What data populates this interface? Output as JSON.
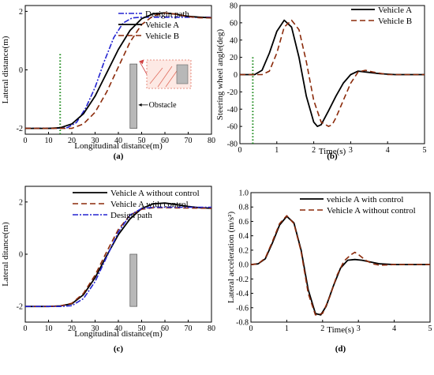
{
  "chart_data": [
    {
      "type": "line",
      "panel_label": "(a)",
      "xlabel": "Longitudinal distance(m)",
      "ylabel": "Lateral distance(m)",
      "xlim": [
        0,
        80
      ],
      "ylim": [
        -2.2,
        2.2
      ],
      "xticks": [
        0,
        10,
        20,
        30,
        40,
        50,
        60,
        70,
        80
      ],
      "yticks": [
        -2,
        0,
        2
      ],
      "legend_position": "top-right",
      "series": [
        {
          "name": "Desigin path",
          "color": "#2323d0",
          "dash": "7,2,2,2",
          "x": [
            0,
            12,
            18,
            22,
            26,
            30,
            34,
            38,
            42,
            46,
            50,
            60,
            70,
            80
          ],
          "y": [
            -2,
            -2,
            -1.98,
            -1.8,
            -1.3,
            -0.6,
            0.3,
            1.1,
            1.6,
            1.78,
            1.8,
            1.8,
            1.8,
            1.8
          ]
        },
        {
          "name": "Vehicle A",
          "color": "#000000",
          "dash": "",
          "x": [
            0,
            10,
            15,
            20,
            25,
            30,
            35,
            40,
            45,
            50,
            55,
            60,
            65,
            70,
            75,
            80
          ],
          "y": [
            -2,
            -2,
            -1.98,
            -1.85,
            -1.5,
            -0.9,
            -0.1,
            0.7,
            1.35,
            1.75,
            1.92,
            1.95,
            1.9,
            1.83,
            1.8,
            1.78
          ]
        },
        {
          "name": "Vehicle B",
          "color": "#8b2a0a",
          "dash": "7,4",
          "x": [
            0,
            15,
            20,
            25,
            30,
            35,
            40,
            45,
            50,
            55,
            60,
            65,
            70,
            75,
            80
          ],
          "y": [
            -2,
            -2,
            -2,
            -1.85,
            -1.45,
            -0.75,
            0.1,
            0.95,
            1.55,
            1.85,
            1.95,
            1.9,
            1.82,
            1.78,
            1.78
          ]
        }
      ],
      "annotations": [
        {
          "text": "Obstacle"
        },
        {
          "type": "vertical_dotted_line",
          "x": 15,
          "color": "#1a8a1a"
        },
        {
          "type": "obstacle_block",
          "x": [
            45,
            48
          ],
          "y": [
            -2,
            0.2
          ]
        }
      ]
    },
    {
      "type": "line",
      "panel_label": "(b)",
      "xlabel": "Time(s)",
      "ylabel": "Steering wheel angle(deg)",
      "xlim": [
        0,
        5
      ],
      "ylim": [
        -80,
        80
      ],
      "xticks": [
        0,
        1,
        2,
        3,
        4,
        5
      ],
      "yticks": [
        -80,
        -60,
        -40,
        -20,
        0,
        20,
        40,
        60,
        80
      ],
      "legend_position": "top-right",
      "series": [
        {
          "name": "Vehicle A",
          "color": "#000000",
          "dash": "",
          "x": [
            0,
            0.4,
            0.6,
            0.8,
            1.0,
            1.2,
            1.4,
            1.6,
            1.8,
            2.0,
            2.1,
            2.2,
            2.4,
            2.6,
            2.8,
            3.0,
            3.2,
            3.4,
            3.8,
            4.2,
            5.0
          ],
          "y": [
            0,
            0,
            5,
            25,
            50,
            63,
            55,
            20,
            -25,
            -55,
            -60,
            -58,
            -42,
            -25,
            -10,
            0,
            4,
            3,
            1,
            0,
            0
          ]
        },
        {
          "name": "Vehicle B",
          "color": "#8b2a0a",
          "dash": "7,4",
          "x": [
            0,
            0.6,
            0.8,
            1.0,
            1.2,
            1.4,
            1.6,
            1.8,
            2.0,
            2.2,
            2.4,
            2.5,
            2.6,
            2.8,
            3.0,
            3.2,
            3.4,
            3.6,
            4.0,
            5.0
          ],
          "y": [
            0,
            0,
            4,
            25,
            55,
            63,
            52,
            15,
            -30,
            -55,
            -60,
            -58,
            -50,
            -30,
            -10,
            3,
            5,
            3,
            0,
            0
          ]
        }
      ],
      "annotations": [
        {
          "type": "vertical_dotted_line",
          "x": 0.35,
          "color": "#1a8a1a"
        }
      ]
    },
    {
      "type": "line",
      "panel_label": "(c)",
      "xlabel": "Longitudinal distance(m)",
      "ylabel": "Lateral ditance(m)",
      "xlim": [
        0,
        80
      ],
      "ylim": [
        -2.6,
        2.6
      ],
      "xticks": [
        0,
        10,
        20,
        30,
        40,
        50,
        60,
        70,
        80
      ],
      "yticks": [
        -2,
        0,
        2
      ],
      "legend_position": "top-left",
      "series": [
        {
          "name": "Vehicle A without control",
          "color": "#000000",
          "dash": "",
          "x": [
            0,
            10,
            15,
            20,
            25,
            30,
            35,
            40,
            45,
            50,
            55,
            60,
            65,
            70,
            75,
            80
          ],
          "y": [
            -2,
            -2,
            -1.98,
            -1.9,
            -1.55,
            -0.9,
            -0.05,
            0.75,
            1.35,
            1.75,
            1.93,
            1.96,
            1.9,
            1.83,
            1.78,
            1.76
          ]
        },
        {
          "name": "Vehicle A with control",
          "color": "#8b2a0a",
          "dash": "7,4",
          "x": [
            0,
            10,
            15,
            20,
            25,
            30,
            35,
            40,
            45,
            50,
            55,
            60,
            70,
            80
          ],
          "y": [
            -2,
            -2,
            -1.98,
            -1.88,
            -1.5,
            -0.8,
            0.1,
            0.95,
            1.5,
            1.72,
            1.78,
            1.78,
            1.77,
            1.76
          ]
        },
        {
          "name": "Design path",
          "color": "#2323d0",
          "dash": "7,2,2,2",
          "x": [
            0,
            15,
            20,
            25,
            30,
            35,
            40,
            45,
            50,
            55,
            60,
            70,
            80
          ],
          "y": [
            -2,
            -2,
            -1.97,
            -1.7,
            -1.05,
            -0.1,
            0.85,
            1.5,
            1.75,
            1.8,
            1.8,
            1.8,
            1.8
          ]
        }
      ],
      "annotations": [
        {
          "type": "obstacle_block",
          "x": [
            45,
            48
          ],
          "y": [
            -2,
            0
          ]
        }
      ]
    },
    {
      "type": "line",
      "panel_label": "(d)",
      "xlabel": "Time(s)",
      "ylabel": "Lateral acceleration (m/s²)",
      "xlim": [
        0,
        5
      ],
      "ylim": [
        -0.8,
        1.0
      ],
      "xticks": [
        0,
        1,
        2,
        3,
        4,
        5
      ],
      "yticks": [
        -0.8,
        -0.6,
        -0.4,
        -0.2,
        0.0,
        0.2,
        0.4,
        0.6,
        0.8,
        1.0
      ],
      "legend_position": "top-right",
      "series": [
        {
          "name": "vehicle A with control",
          "color": "#000000",
          "dash": "",
          "x": [
            0,
            0.2,
            0.4,
            0.6,
            0.8,
            1.0,
            1.2,
            1.4,
            1.6,
            1.8,
            1.95,
            2.1,
            2.3,
            2.5,
            2.7,
            2.9,
            3.1,
            3.3,
            3.6,
            4.0,
            5.0
          ],
          "y": [
            0,
            0.01,
            0.08,
            0.3,
            0.55,
            0.67,
            0.58,
            0.2,
            -0.35,
            -0.68,
            -0.7,
            -0.58,
            -0.3,
            -0.05,
            0.06,
            0.07,
            0.06,
            0.04,
            0.01,
            0,
            0
          ]
        },
        {
          "name": "Vehicle A without control",
          "color": "#8b2a0a",
          "dash": "7,4",
          "x": [
            0,
            0.2,
            0.4,
            0.6,
            0.8,
            1.0,
            1.2,
            1.4,
            1.6,
            1.8,
            2.0,
            2.2,
            2.4,
            2.6,
            2.8,
            2.9,
            3.0,
            3.2,
            3.4,
            3.6,
            4.0,
            5.0
          ],
          "y": [
            0,
            0.01,
            0.09,
            0.32,
            0.57,
            0.68,
            0.57,
            0.18,
            -0.4,
            -0.7,
            -0.68,
            -0.45,
            -0.15,
            0.05,
            0.14,
            0.17,
            0.14,
            0.06,
            0.01,
            -0.01,
            0,
            0
          ]
        }
      ]
    }
  ]
}
